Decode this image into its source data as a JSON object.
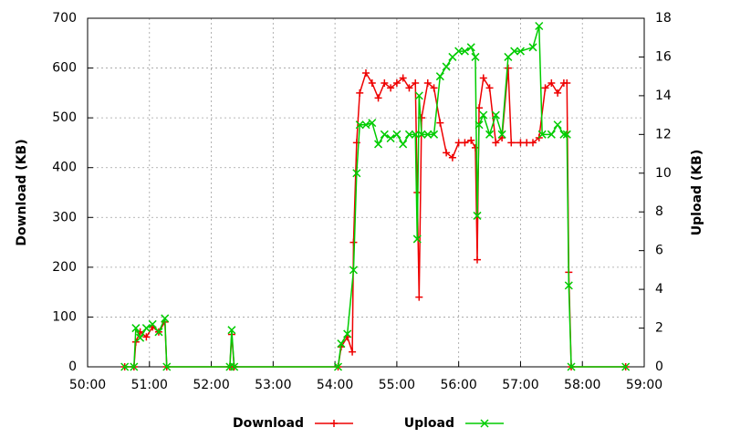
{
  "chart_data": {
    "type": "line",
    "ylabel": "Download (KB)",
    "y2label": "Upload (KB)",
    "xlim": [
      50,
      59
    ],
    "xticks": [
      {
        "value": 50,
        "label": "50:00"
      },
      {
        "value": 51,
        "label": "51:00"
      },
      {
        "value": 52,
        "label": "52:00"
      },
      {
        "value": 53,
        "label": "53:00"
      },
      {
        "value": 54,
        "label": "54:00"
      },
      {
        "value": 55,
        "label": "55:00"
      },
      {
        "value": 56,
        "label": "56:00"
      },
      {
        "value": 57,
        "label": "57:00"
      },
      {
        "value": 58,
        "label": "58:00"
      },
      {
        "value": 59,
        "label": "59:00"
      }
    ],
    "ylim": [
      0,
      700
    ],
    "yticks": [
      0,
      100,
      200,
      300,
      400,
      500,
      600,
      700
    ],
    "y2lim": [
      0,
      18
    ],
    "y2ticks": [
      0,
      2,
      4,
      6,
      8,
      10,
      12,
      14,
      16,
      18
    ],
    "grid": true,
    "legend": "bottom",
    "series": [
      {
        "name": "Download",
        "color": "#ee0000",
        "marker": "plus",
        "x": [
          50.6,
          50.75,
          50.78,
          50.85,
          50.95,
          51.05,
          51.15,
          51.25,
          51.28,
          52.3,
          52.33,
          52.37,
          54.05,
          54.1,
          54.2,
          54.28,
          54.3,
          54.35,
          54.4,
          54.5,
          54.6,
          54.7,
          54.8,
          54.9,
          55.0,
          55.1,
          55.2,
          55.3,
          55.33,
          55.36,
          55.4,
          55.5,
          55.6,
          55.7,
          55.8,
          55.9,
          56.0,
          56.1,
          56.2,
          56.27,
          56.3,
          56.33,
          56.4,
          56.5,
          56.6,
          56.7,
          56.8,
          56.85,
          57.0,
          57.1,
          57.2,
          57.3,
          57.4,
          57.5,
          57.6,
          57.7,
          57.75,
          57.78,
          57.82,
          58.7
        ],
        "values": [
          0,
          0,
          50,
          70,
          60,
          80,
          70,
          90,
          0,
          0,
          65,
          0,
          0,
          40,
          60,
          30,
          250,
          450,
          550,
          590,
          570,
          540,
          570,
          560,
          570,
          580,
          560,
          570,
          350,
          140,
          500,
          570,
          560,
          490,
          430,
          420,
          450,
          450,
          455,
          440,
          215,
          520,
          580,
          560,
          450,
          460,
          600,
          450,
          450,
          450,
          450,
          460,
          560,
          570,
          550,
          570,
          570,
          190,
          0,
          0
        ]
      },
      {
        "name": "Upload",
        "color": "#00cc00",
        "marker": "cross",
        "axis": "y2",
        "x": [
          50.6,
          50.75,
          50.78,
          50.85,
          50.95,
          51.05,
          51.15,
          51.25,
          51.28,
          52.3,
          52.33,
          52.37,
          54.05,
          54.1,
          54.2,
          54.3,
          54.35,
          54.4,
          54.5,
          54.6,
          54.7,
          54.8,
          54.9,
          55.0,
          55.1,
          55.2,
          55.3,
          55.33,
          55.36,
          55.4,
          55.5,
          55.6,
          55.7,
          55.8,
          55.9,
          56.0,
          56.1,
          56.2,
          56.27,
          56.3,
          56.33,
          56.4,
          56.5,
          56.6,
          56.7,
          56.8,
          56.9,
          57.0,
          57.2,
          57.3,
          57.35,
          57.5,
          57.6,
          57.7,
          57.75,
          57.78,
          57.82,
          58.7
        ],
        "values": [
          0,
          0,
          2,
          1.5,
          2,
          2.2,
          1.8,
          2.5,
          0,
          0,
          1.9,
          0,
          0,
          1.2,
          1.7,
          5,
          10,
          12.5,
          12.5,
          12.6,
          11.5,
          12,
          11.8,
          12,
          11.5,
          12,
          12,
          6.6,
          14,
          12,
          12,
          12,
          15,
          15.5,
          16,
          16.3,
          16.3,
          16.5,
          16,
          7.8,
          12.5,
          13,
          12,
          13,
          12,
          16,
          16.3,
          16.3,
          16.5,
          17.6,
          12,
          12,
          12.5,
          12,
          12,
          4.2,
          0,
          0
        ]
      }
    ]
  }
}
